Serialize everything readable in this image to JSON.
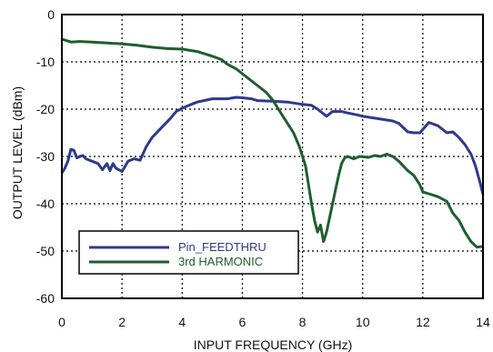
{
  "chart_data": {
    "type": "line",
    "xlabel": "INPUT  FREQUENCY (GHz)",
    "ylabel": "OUTPUT LEVEL (dBm)",
    "xlim": [
      0,
      14
    ],
    "ylim": [
      -60,
      0
    ],
    "x_ticks": [
      0,
      2,
      4,
      6,
      8,
      10,
      12,
      14
    ],
    "y_ticks": [
      0,
      -10,
      -20,
      -30,
      -40,
      -50,
      -60
    ],
    "grid": "dotted",
    "legend_position": "lower-left",
    "series": [
      {
        "name": "Pin_FEEDTHRU",
        "color": "#2e3a8c",
        "points": [
          [
            0.0,
            -33.5
          ],
          [
            0.1,
            -32.5
          ],
          [
            0.2,
            -31.0
          ],
          [
            0.3,
            -28.5
          ],
          [
            0.4,
            -28.7
          ],
          [
            0.5,
            -30.3
          ],
          [
            0.6,
            -30.0
          ],
          [
            0.7,
            -29.8
          ],
          [
            0.8,
            -30.5
          ],
          [
            1.0,
            -31.0
          ],
          [
            1.2,
            -31.5
          ],
          [
            1.35,
            -32.8
          ],
          [
            1.5,
            -31.5
          ],
          [
            1.6,
            -33.0
          ],
          [
            1.7,
            -31.5
          ],
          [
            1.8,
            -32.5
          ],
          [
            2.0,
            -33.2
          ],
          [
            2.2,
            -31.0
          ],
          [
            2.4,
            -30.5
          ],
          [
            2.6,
            -30.8
          ],
          [
            2.8,
            -28.0
          ],
          [
            3.0,
            -26.0
          ],
          [
            3.3,
            -24.0
          ],
          [
            3.6,
            -22.0
          ],
          [
            3.8,
            -20.5
          ],
          [
            4.0,
            -19.8
          ],
          [
            4.3,
            -19.0
          ],
          [
            4.5,
            -18.5
          ],
          [
            5.0,
            -17.8
          ],
          [
            5.5,
            -17.8
          ],
          [
            5.8,
            -17.5
          ],
          [
            6.0,
            -17.6
          ],
          [
            6.3,
            -17.8
          ],
          [
            6.5,
            -18.2
          ],
          [
            7.0,
            -18.3
          ],
          [
            7.5,
            -18.5
          ],
          [
            8.0,
            -19.0
          ],
          [
            8.3,
            -19.2
          ],
          [
            8.5,
            -20.0
          ],
          [
            8.8,
            -21.5
          ],
          [
            9.0,
            -20.5
          ],
          [
            9.3,
            -20.5
          ],
          [
            9.5,
            -20.8
          ],
          [
            9.8,
            -21.2
          ],
          [
            10.0,
            -21.5
          ],
          [
            10.3,
            -21.8
          ],
          [
            10.5,
            -22.0
          ],
          [
            11.0,
            -22.5
          ],
          [
            11.2,
            -23.0
          ],
          [
            11.5,
            -24.8
          ],
          [
            11.7,
            -25.0
          ],
          [
            11.9,
            -25.0
          ],
          [
            12.2,
            -22.8
          ],
          [
            12.5,
            -23.5
          ],
          [
            12.8,
            -25.0
          ],
          [
            13.0,
            -24.8
          ],
          [
            13.2,
            -26.0
          ],
          [
            13.4,
            -27.5
          ],
          [
            13.6,
            -29.5
          ],
          [
            13.75,
            -32.0
          ],
          [
            13.9,
            -35.5
          ],
          [
            14.0,
            -38.0
          ]
        ]
      },
      {
        "name": "3rd HARMONIC",
        "color": "#1f5e2e",
        "points": [
          [
            0.0,
            -5.2
          ],
          [
            0.3,
            -5.8
          ],
          [
            0.6,
            -5.7
          ],
          [
            1.0,
            -5.8
          ],
          [
            1.5,
            -6.0
          ],
          [
            2.0,
            -6.2
          ],
          [
            2.5,
            -6.5
          ],
          [
            3.0,
            -6.9
          ],
          [
            3.5,
            -7.2
          ],
          [
            4.0,
            -7.3
          ],
          [
            4.5,
            -7.8
          ],
          [
            5.0,
            -8.8
          ],
          [
            5.3,
            -9.5
          ],
          [
            5.5,
            -10.5
          ],
          [
            5.8,
            -11.5
          ],
          [
            6.0,
            -12.5
          ],
          [
            6.2,
            -13.5
          ],
          [
            6.5,
            -15.0
          ],
          [
            6.8,
            -16.5
          ],
          [
            7.0,
            -18.0
          ],
          [
            7.2,
            -20.0
          ],
          [
            7.5,
            -23.0
          ],
          [
            7.7,
            -25.0
          ],
          [
            7.9,
            -28.0
          ],
          [
            8.1,
            -32.0
          ],
          [
            8.2,
            -36.0
          ],
          [
            8.3,
            -40.0
          ],
          [
            8.4,
            -43.5
          ],
          [
            8.5,
            -46.0
          ],
          [
            8.6,
            -44.5
          ],
          [
            8.7,
            -48.0
          ],
          [
            8.8,
            -46.0
          ],
          [
            8.9,
            -43.0
          ],
          [
            9.0,
            -40.0
          ],
          [
            9.1,
            -37.0
          ],
          [
            9.2,
            -34.0
          ],
          [
            9.3,
            -31.5
          ],
          [
            9.4,
            -30.3
          ],
          [
            9.5,
            -30.0
          ],
          [
            9.7,
            -30.5
          ],
          [
            9.9,
            -30.0
          ],
          [
            10.2,
            -30.2
          ],
          [
            10.4,
            -29.8
          ],
          [
            10.6,
            -30.0
          ],
          [
            10.8,
            -29.5
          ],
          [
            11.0,
            -30.0
          ],
          [
            11.2,
            -31.0
          ],
          [
            11.5,
            -33.0
          ],
          [
            11.7,
            -34.0
          ],
          [
            11.9,
            -36.0
          ],
          [
            12.0,
            -37.5
          ],
          [
            12.5,
            -38.5
          ],
          [
            12.8,
            -39.5
          ],
          [
            13.0,
            -42.0
          ],
          [
            13.2,
            -43.5
          ],
          [
            13.4,
            -46.0
          ],
          [
            13.6,
            -48.0
          ],
          [
            13.8,
            -49.2
          ],
          [
            14.0,
            -49.0
          ]
        ]
      }
    ]
  }
}
